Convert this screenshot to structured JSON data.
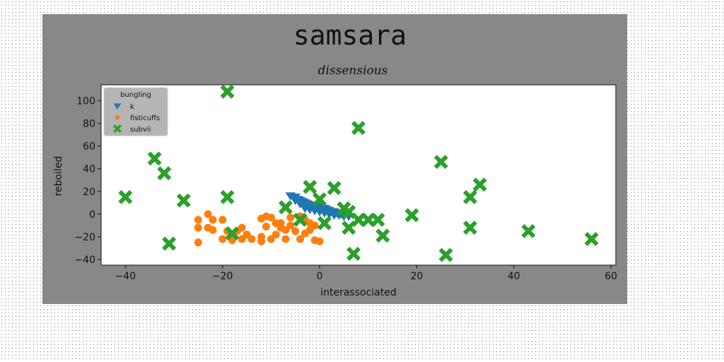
{
  "chart_data": {
    "type": "scatter",
    "title": "samsara",
    "subtitle": "dissensious",
    "xlabel": "interassociated",
    "ylabel": "reboiled",
    "xlim": [
      -45,
      61
    ],
    "ylim": [
      -45,
      114
    ],
    "xticks": [
      -40,
      -20,
      0,
      20,
      40,
      60
    ],
    "yticks": [
      -40,
      -20,
      0,
      20,
      40,
      60,
      80,
      100
    ],
    "grid": false,
    "legend": {
      "title": "bungling",
      "position": "top-left"
    },
    "colors": {
      "frame_bg": "#888888",
      "plot_bg": "#ffffff",
      "k": "#1f77b4",
      "fisticuffs": "#ff7f0e",
      "subvii": "#2ca02c"
    },
    "series": [
      {
        "name": "k",
        "marker": "triangle-down",
        "points": [
          [
            -6,
            16
          ],
          [
            -5,
            15
          ],
          [
            -4.5,
            13
          ],
          [
            -4,
            12
          ],
          [
            -3.5,
            11
          ],
          [
            -3,
            10
          ],
          [
            -2.5,
            9
          ],
          [
            -2,
            8
          ],
          [
            -1.5,
            7
          ],
          [
            -1,
            6
          ],
          [
            -0.5,
            7
          ],
          [
            0,
            6
          ],
          [
            0.5,
            5
          ],
          [
            1,
            5
          ],
          [
            1.5,
            4
          ],
          [
            2,
            3
          ],
          [
            2.5,
            2
          ],
          [
            3,
            2
          ],
          [
            3.5,
            1
          ],
          [
            4,
            1
          ],
          [
            4.5,
            0
          ],
          [
            5,
            0
          ],
          [
            -5,
            12
          ],
          [
            -4,
            9
          ],
          [
            -3,
            5
          ],
          [
            -2,
            4
          ],
          [
            -1,
            3
          ],
          [
            0,
            2
          ],
          [
            1,
            1
          ],
          [
            2,
            0
          ],
          [
            3,
            -1
          ],
          [
            4,
            -1
          ],
          [
            5,
            -2
          ],
          [
            6,
            -2
          ]
        ]
      },
      {
        "name": "fisticuffs",
        "marker": "circle",
        "points": [
          [
            -25,
            -5
          ],
          [
            -23,
            0
          ],
          [
            -22,
            -5
          ],
          [
            -20,
            -5
          ],
          [
            -25,
            -12
          ],
          [
            -23,
            -12
          ],
          [
            -22,
            -14
          ],
          [
            -19,
            -15
          ],
          [
            -17,
            -15
          ],
          [
            -16,
            -12
          ],
          [
            -15,
            -18
          ],
          [
            -14,
            -22
          ],
          [
            -18,
            -23
          ],
          [
            -20,
            -22
          ],
          [
            -25,
            -25
          ],
          [
            -12,
            -4
          ],
          [
            -11,
            -2
          ],
          [
            -10,
            -3
          ],
          [
            -9,
            -8
          ],
          [
            -8,
            -12
          ],
          [
            -7,
            -14
          ],
          [
            -9,
            -18
          ],
          [
            -10,
            -22
          ],
          [
            -12,
            -20
          ],
          [
            -12,
            -24
          ],
          [
            -11,
            -11
          ],
          [
            -6,
            -3
          ],
          [
            -4,
            -2
          ],
          [
            -3,
            -5
          ],
          [
            -2,
            -8
          ],
          [
            -1,
            -10
          ],
          [
            -2,
            -14
          ],
          [
            -3,
            -17
          ],
          [
            -4,
            -22
          ],
          [
            -1,
            -23
          ],
          [
            0,
            -24
          ],
          [
            -6,
            -10
          ],
          [
            -7,
            -22
          ],
          [
            -8,
            -8
          ],
          [
            -5,
            -15
          ],
          [
            -16,
            -22
          ]
        ]
      },
      {
        "name": "subvii",
        "marker": "x",
        "points": [
          [
            -19,
            108
          ],
          [
            8,
            76
          ],
          [
            -34,
            49
          ],
          [
            -32,
            36
          ],
          [
            25,
            46
          ],
          [
            -40,
            15
          ],
          [
            -28,
            12
          ],
          [
            -19,
            15
          ],
          [
            33,
            26
          ],
          [
            31,
            15
          ],
          [
            -2,
            24
          ],
          [
            3,
            23
          ],
          [
            0,
            13
          ],
          [
            -7,
            6
          ],
          [
            5,
            5
          ],
          [
            6,
            2
          ],
          [
            8,
            -5
          ],
          [
            10,
            -5
          ],
          [
            12,
            -5
          ],
          [
            19,
            -1
          ],
          [
            -4,
            -5
          ],
          [
            1,
            -8
          ],
          [
            6,
            -12
          ],
          [
            31,
            -12
          ],
          [
            43,
            -15
          ],
          [
            56,
            -22
          ],
          [
            -18,
            -17
          ],
          [
            13,
            -19
          ],
          [
            -31,
            -26
          ],
          [
            7,
            -35
          ],
          [
            26,
            -36
          ]
        ]
      }
    ]
  }
}
